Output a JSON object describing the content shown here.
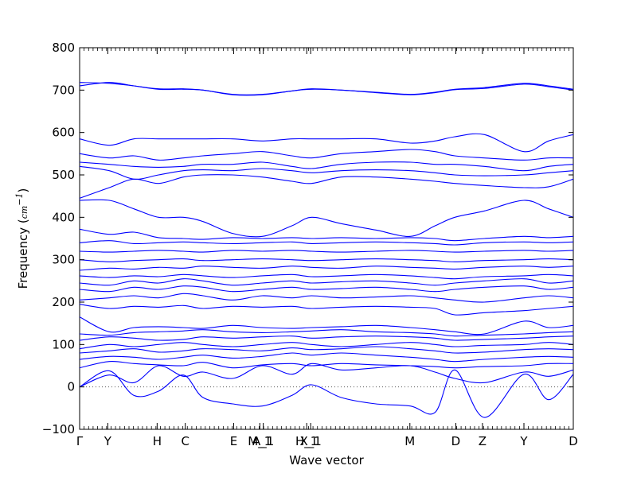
{
  "chart_data": {
    "type": "line",
    "title": "",
    "xlabel": "Wave vector",
    "ylabel": "Frequency",
    "ylabel_unit": "cm",
    "ylabel_unit_exp": "−1",
    "ylim": [
      -100,
      800
    ],
    "yticks": [
      -100,
      0,
      100,
      200,
      300,
      400,
      500,
      600,
      700,
      800
    ],
    "grid": false,
    "legend": "none",
    "line_color": "#0000ff",
    "zero_line_color": "#555555",
    "xlim": [
      0,
      100
    ],
    "xticks": [
      {
        "label": "Γ",
        "pos": 0
      },
      {
        "label": "Y",
        "pos": 5.7
      },
      {
        "label": "H",
        "pos": 15.7
      },
      {
        "label": "C",
        "pos": 21.4
      },
      {
        "label": "E",
        "pos": 31.2
      },
      {
        "label": "M_1",
        "pos": 36.5
      },
      {
        "label": "A_1",
        "pos": 37.2
      },
      {
        "label": "H_1",
        "pos": 46.0
      },
      {
        "label": "X_1",
        "pos": 46.8
      },
      {
        "label": "M",
        "pos": 66.9
      },
      {
        "label": "D",
        "pos": 76.2
      },
      {
        "label": "Z",
        "pos": 81.6
      },
      {
        "label": "Y",
        "pos": 90.0
      },
      {
        "label": "D",
        "pos": 100
      }
    ],
    "series": [
      {
        "x": [
          0,
          6,
          11,
          16,
          21,
          25,
          31,
          37,
          43,
          47,
          53,
          60,
          67,
          72,
          76,
          82,
          90,
          95,
          100
        ],
        "y": [
          0,
          38,
          -20,
          -10,
          28,
          -25,
          -40,
          -45,
          -20,
          5,
          -25,
          -40,
          -45,
          -60,
          40,
          -72,
          30,
          -30,
          30
        ]
      },
      {
        "x": [
          0,
          6,
          11,
          16,
          21,
          25,
          31,
          37,
          43,
          47,
          53,
          60,
          67,
          72,
          76,
          82,
          90,
          95,
          100
        ],
        "y": [
          0,
          28,
          10,
          50,
          25,
          35,
          20,
          50,
          30,
          55,
          40,
          45,
          50,
          35,
          20,
          10,
          35,
          25,
          40
        ]
      },
      {
        "x": [
          0,
          6,
          11,
          16,
          21,
          25,
          31,
          37,
          43,
          47,
          53,
          60,
          67,
          72,
          76,
          82,
          90,
          95,
          100
        ],
        "y": [
          45,
          60,
          55,
          52,
          50,
          58,
          45,
          52,
          55,
          50,
          55,
          52,
          50,
          48,
          45,
          48,
          50,
          55,
          55
        ]
      },
      {
        "x": [
          0,
          6,
          11,
          16,
          21,
          25,
          31,
          37,
          43,
          47,
          53,
          60,
          67,
          72,
          76,
          82,
          90,
          95,
          100
        ],
        "y": [
          65,
          72,
          70,
          65,
          70,
          75,
          68,
          72,
          80,
          75,
          80,
          75,
          70,
          65,
          60,
          65,
          70,
          72,
          70
        ]
      },
      {
        "x": [
          0,
          6,
          11,
          16,
          21,
          25,
          31,
          37,
          43,
          47,
          53,
          60,
          67,
          72,
          76,
          82,
          90,
          95,
          100
        ],
        "y": [
          80,
          85,
          90,
          82,
          85,
          90,
          88,
          85,
          92,
          88,
          90,
          95,
          90,
          85,
          80,
          82,
          88,
          90,
          88
        ]
      },
      {
        "x": [
          0,
          6,
          11,
          16,
          21,
          25,
          31,
          37,
          43,
          47,
          53,
          60,
          67,
          72,
          76,
          82,
          90,
          95,
          100
        ],
        "y": [
          90,
          100,
          95,
          100,
          105,
          100,
          95,
          100,
          105,
          100,
          95,
          100,
          105,
          100,
          95,
          98,
          100,
          105,
          100
        ]
      },
      {
        "x": [
          0,
          6,
          11,
          16,
          21,
          25,
          31,
          37,
          43,
          47,
          53,
          60,
          67,
          72,
          76,
          82,
          90,
          95,
          100
        ],
        "y": [
          110,
          118,
          115,
          110,
          112,
          118,
          115,
          118,
          120,
          115,
          118,
          120,
          118,
          115,
          110,
          112,
          115,
          118,
          120
        ]
      },
      {
        "x": [
          0,
          6,
          11,
          16,
          21,
          25,
          31,
          37,
          43,
          47,
          53,
          60,
          67,
          72,
          76,
          82,
          90,
          95,
          100
        ],
        "y": [
          125,
          122,
          128,
          130,
          132,
          135,
          130,
          128,
          130,
          132,
          135,
          130,
          128,
          125,
          120,
          122,
          125,
          128,
          130
        ]
      },
      {
        "x": [
          0,
          6,
          11,
          16,
          21,
          25,
          31,
          37,
          43,
          47,
          53,
          60,
          67,
          72,
          76,
          82,
          90,
          95,
          100
        ],
        "y": [
          165,
          130,
          140,
          142,
          140,
          138,
          145,
          140,
          138,
          140,
          142,
          145,
          140,
          135,
          130,
          125,
          155,
          140,
          145
        ]
      },
      {
        "x": [
          0,
          6,
          11,
          16,
          21,
          25,
          31,
          37,
          43,
          47,
          53,
          60,
          67,
          72,
          76,
          82,
          90,
          95,
          100
        ],
        "y": [
          195,
          185,
          190,
          188,
          192,
          185,
          190,
          188,
          190,
          185,
          188,
          190,
          188,
          185,
          170,
          175,
          180,
          185,
          190
        ]
      },
      {
        "x": [
          0,
          6,
          11,
          16,
          21,
          25,
          31,
          37,
          43,
          47,
          53,
          60,
          67,
          72,
          76,
          82,
          90,
          95,
          100
        ],
        "y": [
          205,
          210,
          215,
          210,
          220,
          215,
          205,
          215,
          210,
          215,
          210,
          212,
          215,
          210,
          205,
          200,
          210,
          215,
          210
        ]
      },
      {
        "x": [
          0,
          6,
          11,
          16,
          21,
          25,
          31,
          37,
          43,
          47,
          53,
          60,
          67,
          72,
          76,
          82,
          90,
          95,
          100
        ],
        "y": [
          230,
          225,
          235,
          230,
          238,
          235,
          225,
          230,
          235,
          230,
          232,
          235,
          230,
          225,
          230,
          235,
          238,
          230,
          235
        ]
      },
      {
        "x": [
          0,
          6,
          11,
          16,
          21,
          25,
          31,
          37,
          43,
          47,
          53,
          60,
          67,
          72,
          76,
          82,
          90,
          95,
          100
        ],
        "y": [
          245,
          240,
          250,
          245,
          255,
          250,
          240,
          245,
          250,
          245,
          248,
          250,
          245,
          240,
          245,
          250,
          255,
          245,
          250
        ]
      },
      {
        "x": [
          0,
          6,
          11,
          16,
          21,
          25,
          31,
          37,
          43,
          47,
          53,
          60,
          67,
          72,
          76,
          82,
          90,
          95,
          100
        ],
        "y": [
          262,
          258,
          262,
          260,
          265,
          262,
          258,
          262,
          265,
          260,
          262,
          265,
          262,
          258,
          255,
          260,
          262,
          265,
          262
        ]
      },
      {
        "x": [
          0,
          6,
          11,
          16,
          21,
          25,
          31,
          37,
          43,
          47,
          53,
          60,
          67,
          72,
          76,
          82,
          90,
          95,
          100
        ],
        "y": [
          275,
          280,
          278,
          282,
          280,
          285,
          282,
          280,
          285,
          282,
          280,
          285,
          282,
          280,
          278,
          282,
          285,
          282,
          285
        ]
      },
      {
        "x": [
          0,
          6,
          11,
          16,
          21,
          25,
          31,
          37,
          43,
          47,
          53,
          60,
          67,
          72,
          76,
          82,
          90,
          95,
          100
        ],
        "y": [
          300,
          295,
          298,
          300,
          302,
          298,
          300,
          302,
          300,
          298,
          300,
          302,
          300,
          298,
          295,
          298,
          300,
          302,
          300
        ]
      },
      {
        "x": [
          0,
          6,
          11,
          16,
          21,
          25,
          31,
          37,
          43,
          47,
          53,
          60,
          67,
          72,
          76,
          82,
          90,
          95,
          100
        ],
        "y": [
          320,
          318,
          320,
          322,
          320,
          318,
          322,
          320,
          322,
          320,
          318,
          320,
          322,
          320,
          318,
          320,
          322,
          320,
          322
        ]
      },
      {
        "x": [
          0,
          6,
          11,
          16,
          21,
          25,
          31,
          37,
          43,
          47,
          53,
          60,
          67,
          72,
          76,
          82,
          90,
          95,
          100
        ],
        "y": [
          340,
          345,
          338,
          340,
          342,
          340,
          338,
          340,
          342,
          338,
          340,
          342,
          340,
          338,
          335,
          340,
          342,
          340,
          342
        ]
      },
      {
        "x": [
          0,
          6,
          11,
          16,
          21,
          25,
          31,
          37,
          43,
          47,
          53,
          60,
          67,
          72,
          76,
          82,
          90,
          95,
          100
        ],
        "y": [
          372,
          360,
          365,
          352,
          350,
          348,
          352,
          350,
          352,
          350,
          352,
          350,
          352,
          350,
          345,
          350,
          355,
          352,
          355
        ]
      },
      {
        "x": [
          0,
          6,
          11,
          16,
          21,
          25,
          31,
          37,
          43,
          47,
          53,
          60,
          67,
          72,
          76,
          82,
          90,
          95,
          100
        ],
        "y": [
          440,
          440,
          420,
          400,
          400,
          390,
          362,
          355,
          380,
          400,
          385,
          370,
          355,
          380,
          400,
          415,
          440,
          420,
          400
        ]
      },
      {
        "x": [
          0,
          6,
          11,
          16,
          21,
          25,
          31,
          37,
          43,
          47,
          53,
          60,
          67,
          72,
          76,
          82,
          90,
          95,
          100
        ],
        "y": [
          445,
          470,
          490,
          480,
          495,
          500,
          500,
          495,
          485,
          480,
          495,
          495,
          490,
          485,
          480,
          475,
          470,
          472,
          490
        ]
      },
      {
        "x": [
          0,
          6,
          11,
          16,
          21,
          25,
          31,
          37,
          43,
          47,
          53,
          60,
          67,
          72,
          76,
          82,
          90,
          95,
          100
        ],
        "y": [
          520,
          510,
          490,
          500,
          510,
          512,
          510,
          515,
          510,
          505,
          510,
          512,
          510,
          505,
          500,
          498,
          500,
          505,
          510
        ]
      },
      {
        "x": [
          0,
          6,
          11,
          16,
          21,
          25,
          31,
          37,
          43,
          47,
          53,
          60,
          67,
          72,
          76,
          82,
          90,
          95,
          100
        ],
        "y": [
          530,
          525,
          520,
          518,
          520,
          525,
          525,
          530,
          520,
          515,
          525,
          530,
          530,
          525,
          525,
          520,
          510,
          520,
          525
        ]
      },
      {
        "x": [
          0,
          6,
          11,
          16,
          21,
          25,
          31,
          37,
          43,
          47,
          53,
          60,
          67,
          72,
          76,
          82,
          90,
          95,
          100
        ],
        "y": [
          550,
          540,
          545,
          535,
          540,
          545,
          550,
          555,
          545,
          540,
          550,
          555,
          560,
          555,
          545,
          540,
          535,
          540,
          540
        ]
      },
      {
        "x": [
          0,
          6,
          11,
          16,
          21,
          25,
          31,
          37,
          43,
          47,
          53,
          60,
          67,
          72,
          76,
          82,
          90,
          95,
          100
        ],
        "y": [
          585,
          570,
          585,
          585,
          585,
          585,
          585,
          580,
          585,
          585,
          585,
          585,
          575,
          580,
          590,
          595,
          555,
          580,
          595
        ]
      },
      {
        "x": [
          0,
          6,
          11,
          16,
          21,
          25,
          31,
          37,
          43,
          47,
          53,
          60,
          67,
          72,
          76,
          82,
          90,
          95,
          100
        ],
        "y": [
          710,
          718,
          710,
          702,
          702,
          700,
          690,
          690,
          698,
          703,
          700,
          695,
          690,
          695,
          702,
          706,
          716,
          710,
          702
        ]
      },
      {
        "x": [
          0,
          6,
          11,
          16,
          21,
          25,
          31,
          37,
          43,
          47,
          53,
          60,
          67,
          72,
          76,
          82,
          90,
          95,
          100
        ],
        "y": [
          718,
          716,
          710,
          703,
          703,
          700,
          689,
          689,
          698,
          702,
          700,
          694,
          689,
          694,
          701,
          704,
          714,
          708,
          700
        ]
      }
    ]
  }
}
